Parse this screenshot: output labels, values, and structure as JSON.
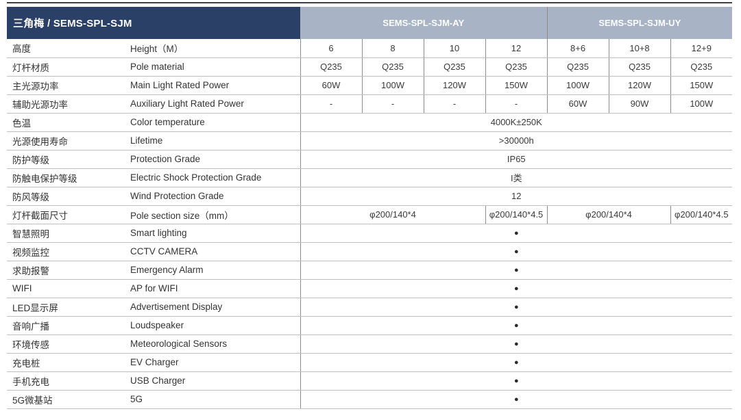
{
  "header": {
    "title": "三角梅 / SEMS-SPL-SJM",
    "groups": [
      {
        "label": "SEMS-SPL-SJM-AY",
        "span": 4
      },
      {
        "label": "SEMS-SPL-SJM-UY",
        "span": 3
      }
    ]
  },
  "rows": [
    {
      "zh": "高度",
      "en": "Height（M）",
      "cells": [
        {
          "v": "6"
        },
        {
          "v": "8"
        },
        {
          "v": "10"
        },
        {
          "v": "12"
        },
        {
          "v": "8+6"
        },
        {
          "v": "10+8"
        },
        {
          "v": "12+9"
        }
      ]
    },
    {
      "zh": "灯杆材质",
      "en": "Pole material",
      "cells": [
        {
          "v": "Q235"
        },
        {
          "v": "Q235"
        },
        {
          "v": "Q235"
        },
        {
          "v": "Q235"
        },
        {
          "v": "Q235"
        },
        {
          "v": "Q235"
        },
        {
          "v": "Q235"
        }
      ]
    },
    {
      "zh": "主光源功率",
      "en": "Main Light Rated Power",
      "cells": [
        {
          "v": "60W"
        },
        {
          "v": "100W"
        },
        {
          "v": "120W"
        },
        {
          "v": "150W"
        },
        {
          "v": "100W"
        },
        {
          "v": "120W"
        },
        {
          "v": "150W"
        }
      ]
    },
    {
      "zh": "辅助光源功率",
      "en": "Auxiliary Light Rated Power",
      "cells": [
        {
          "v": "-"
        },
        {
          "v": "-"
        },
        {
          "v": "-"
        },
        {
          "v": "-"
        },
        {
          "v": "60W"
        },
        {
          "v": "90W"
        },
        {
          "v": "100W"
        }
      ]
    },
    {
      "zh": "色温",
      "en": "Color temperature",
      "cells": [
        {
          "v": "4000K±250K",
          "span": 7
        }
      ]
    },
    {
      "zh": "光源使用寿命",
      "en": "Lifetime",
      "cells": [
        {
          "v": ">30000h",
          "span": 7
        }
      ]
    },
    {
      "zh": "防护等级",
      "en": "Protection Grade",
      "cells": [
        {
          "v": "IP65",
          "span": 7
        }
      ]
    },
    {
      "zh": "防触电保护等级",
      "en": "Electric Shock Protection Grade",
      "cells": [
        {
          "v": "I类",
          "span": 7
        }
      ]
    },
    {
      "zh": "防风等级",
      "en": "Wind Protection Grade",
      "cells": [
        {
          "v": "12",
          "span": 7
        }
      ]
    },
    {
      "zh": "灯杆截面尺寸",
      "en": "Pole section size（mm）",
      "cells": [
        {
          "v": "φ200/140*4",
          "span": 3
        },
        {
          "v": "φ200/140*4.5",
          "span": 1
        },
        {
          "v": "φ200/140*4",
          "span": 2
        },
        {
          "v": "φ200/140*4.5",
          "span": 1
        }
      ]
    },
    {
      "zh": "智慧照明",
      "en": "Smart lighting",
      "cells": [
        {
          "v": "●",
          "span": 7,
          "bullet": true
        }
      ]
    },
    {
      "zh": "视频监控",
      "en": "CCTV CAMERA",
      "cells": [
        {
          "v": "●",
          "span": 7,
          "bullet": true
        }
      ]
    },
    {
      "zh": "求助报警",
      "en": "Emergency Alarm",
      "cells": [
        {
          "v": "●",
          "span": 7,
          "bullet": true
        }
      ]
    },
    {
      "zh": "WIFI",
      "en": "AP for WIFI",
      "cells": [
        {
          "v": "●",
          "span": 7,
          "bullet": true
        }
      ]
    },
    {
      "zh": "LED显示屏",
      "en": "Advertisement Display",
      "cells": [
        {
          "v": "●",
          "span": 7,
          "bullet": true
        }
      ]
    },
    {
      "zh": "音响广播",
      "en": "Loudspeaker",
      "cells": [
        {
          "v": "●",
          "span": 7,
          "bullet": true
        }
      ]
    },
    {
      "zh": "环境传感",
      "en": "Meteorological Sensors",
      "cells": [
        {
          "v": "●",
          "span": 7,
          "bullet": true
        }
      ]
    },
    {
      "zh": "充电桩",
      "en": "EV Charger",
      "cells": [
        {
          "v": "●",
          "span": 7,
          "bullet": true
        }
      ]
    },
    {
      "zh": "手机充电",
      "en": "USB Charger",
      "cells": [
        {
          "v": "●",
          "span": 7,
          "bullet": true
        }
      ]
    },
    {
      "zh": "5G微基站",
      "en": "5G",
      "cells": [
        {
          "v": "●",
          "span": 7,
          "bullet": true
        }
      ]
    }
  ],
  "colors": {
    "navy": "#2a4067",
    "steel_blue": "#a8b4c5",
    "grid_v": "#8c8c8c",
    "grid_h": "#bfbfbf",
    "text": "#333333",
    "top_rule": "#3f3f3f"
  }
}
